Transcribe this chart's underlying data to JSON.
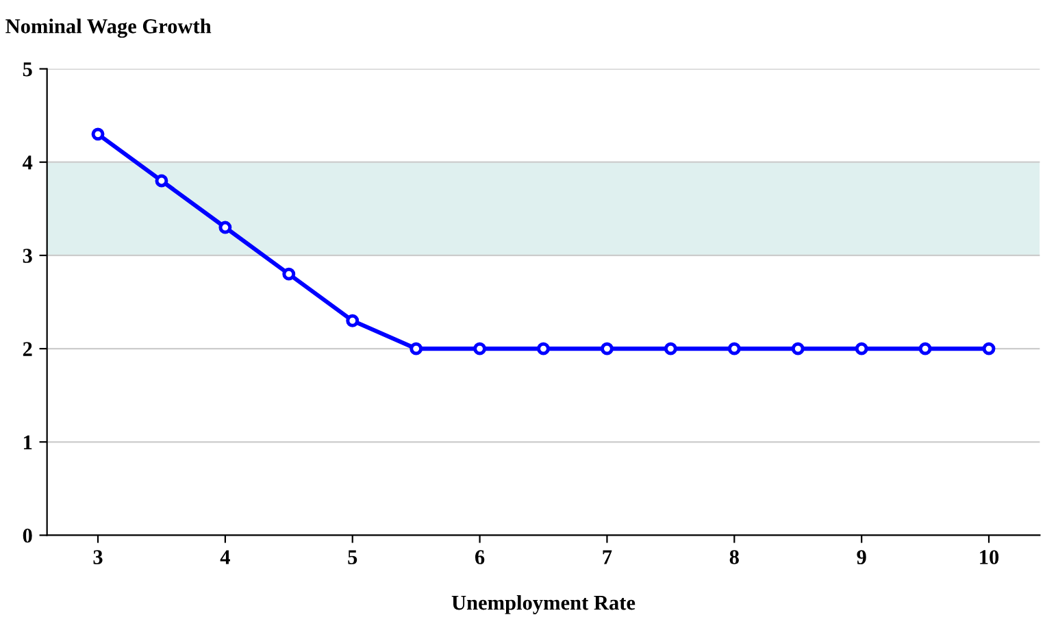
{
  "chart_data": {
    "type": "line",
    "ylabel": "Nominal Wage Growth",
    "xlabel": "Unemployment Rate",
    "x": [
      3,
      3.5,
      4,
      4.5,
      5,
      5.5,
      6,
      6.5,
      7,
      7.5,
      8,
      8.5,
      9,
      9.5,
      10
    ],
    "series": [
      {
        "color": "#0000ff",
        "values": [
          4.3,
          3.8,
          3.3,
          2.8,
          2.3,
          2,
          2,
          2,
          2,
          2,
          2,
          2,
          2,
          2,
          2
        ]
      }
    ],
    "xlim": [
      2.6,
      10.4
    ],
    "xticks": [
      3,
      4,
      5,
      6,
      7,
      8,
      9,
      10
    ],
    "ylim": [
      0,
      5
    ],
    "yticks": [
      0,
      1,
      2,
      3,
      4,
      5
    ],
    "bands": [
      {
        "axis": "y",
        "from": 3,
        "to": 4,
        "color": "#dff0ef"
      }
    ],
    "grid": "y",
    "marker": "circle",
    "line_style": "solid",
    "legend": false
  }
}
